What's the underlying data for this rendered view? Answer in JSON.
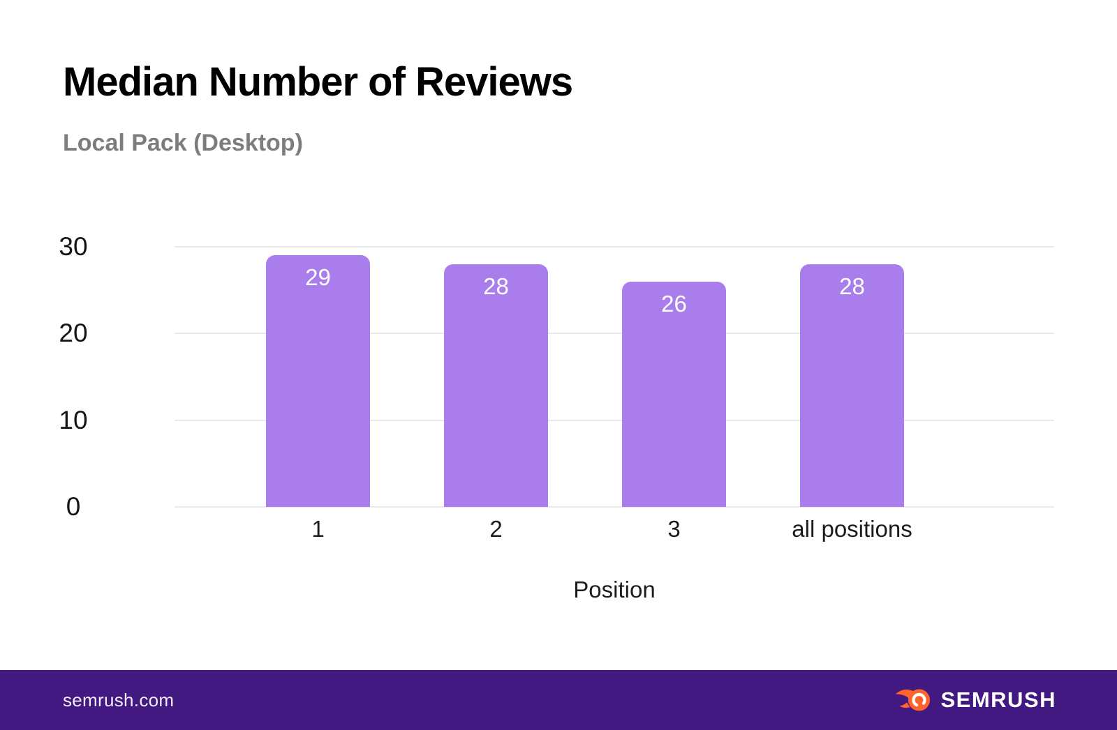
{
  "header": {
    "title": "Median Number of Reviews",
    "subtitle": "Local Pack (Desktop)"
  },
  "chart_data": {
    "type": "bar",
    "title": "Median Number of Reviews",
    "subtitle": "Local Pack (Desktop)",
    "categories": [
      "1",
      "2",
      "3",
      "all positions"
    ],
    "values": [
      29,
      28,
      26,
      28
    ],
    "xlabel": "Position",
    "ylabel": "",
    "ylim": [
      0,
      30
    ],
    "yticks": [
      0,
      10,
      20,
      30
    ],
    "grid": true,
    "legend_position": "none",
    "bar_color": "#a97dec",
    "value_label_color": "#ffffff",
    "gridline_color": "#e9e9e9"
  },
  "footer": {
    "site_label": "semrush.com",
    "brand_name": "SEMRUSH",
    "background_color": "#421981",
    "logo_flame_color": "#ff642d"
  }
}
